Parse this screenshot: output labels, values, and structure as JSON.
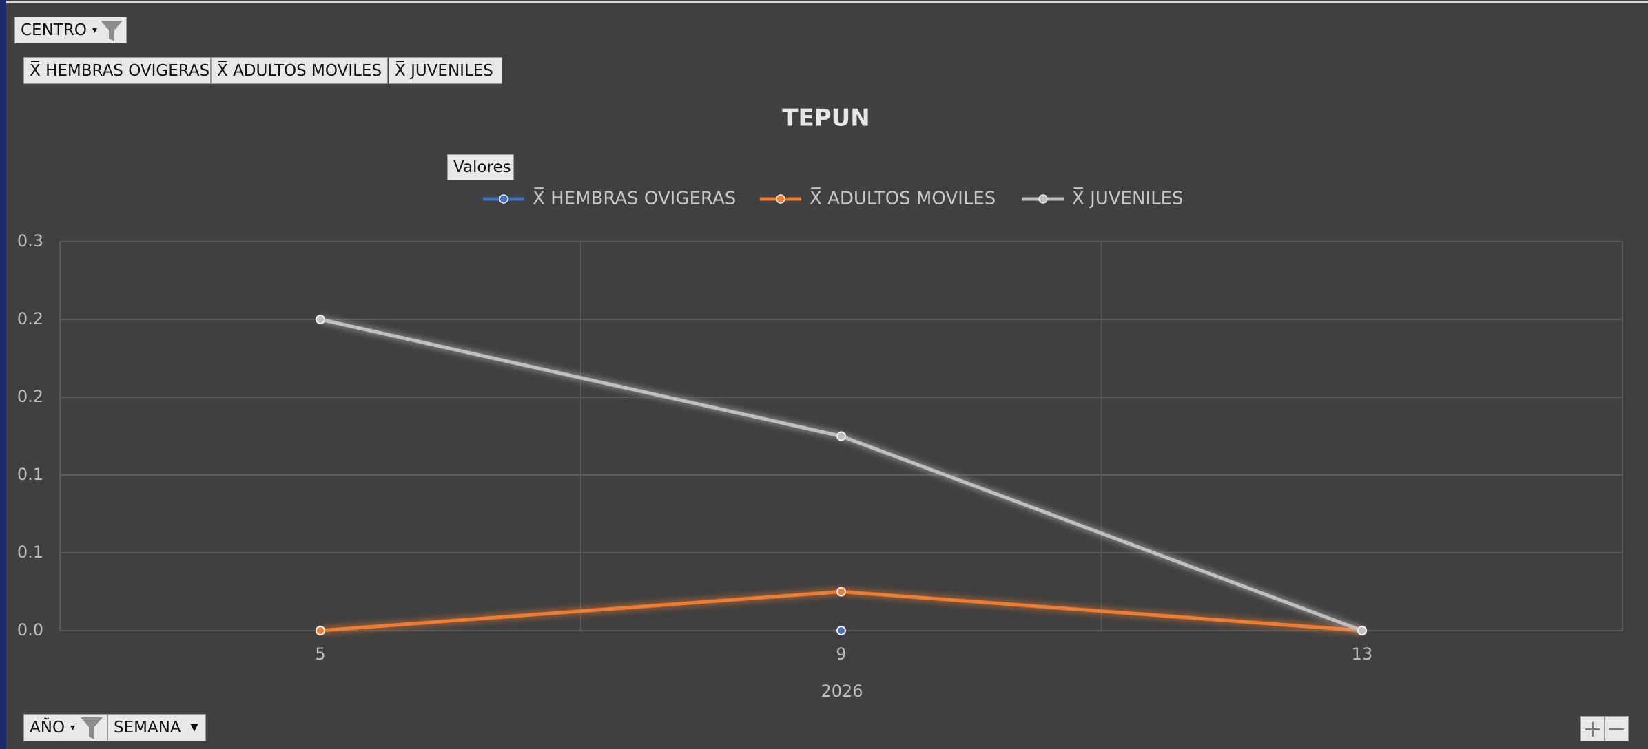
{
  "report_filter": "CENTRO",
  "values_button": "Valores",
  "axis_fields": [
    "AÑO",
    "SEMANA"
  ],
  "chart_data": {
    "type": "line",
    "title": "TEPUN",
    "categories": [
      "5",
      "9",
      "13"
    ],
    "x_group_label": "2026",
    "series": [
      {
        "name": "X̅ HEMBRAS OVIGERAS",
        "color": "#4472c4",
        "values": [
          0,
          0,
          0
        ]
      },
      {
        "name": "X̅ ADULTOS MOVILES",
        "color": "#ed7d31",
        "values": [
          0,
          0.025,
          0
        ]
      },
      {
        "name": "X̅ JUVENILES",
        "color": "#bfbfbf",
        "values": [
          0.2,
          0.125,
          0
        ]
      }
    ],
    "ylim": [
      0,
      0.25
    ],
    "yticks": [
      {
        "value": 0,
        "label": "0.0"
      },
      {
        "value": 0.05,
        "label": "0.1"
      },
      {
        "value": 0.1,
        "label": "0.1"
      },
      {
        "value": 0.15,
        "label": "0.2"
      },
      {
        "value": 0.2,
        "label": "0.2"
      },
      {
        "value": 0.25,
        "label": "0.3"
      }
    ],
    "grid": true,
    "legend": "top"
  }
}
